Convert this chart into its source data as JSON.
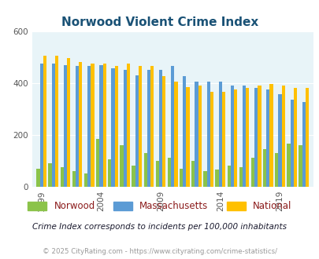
{
  "title": "Norwood Violent Crime Index",
  "title_color": "#1a5276",
  "subtitle": "Crime Index corresponds to incidents per 100,000 inhabitants",
  "footer": "© 2025 CityRating.com - https://www.cityrating.com/crime-statistics/",
  "years": [
    1999,
    2000,
    2001,
    2002,
    2003,
    2004,
    2005,
    2006,
    2007,
    2008,
    2009,
    2010,
    2011,
    2012,
    2013,
    2014,
    2015,
    2016,
    2017,
    2018,
    2019,
    2020,
    2021
  ],
  "norwood": [
    70,
    90,
    75,
    60,
    50,
    185,
    105,
    160,
    80,
    130,
    100,
    110,
    70,
    100,
    60,
    65,
    80,
    75,
    110,
    145,
    130,
    165,
    160
  ],
  "massachusetts": [
    475,
    475,
    470,
    465,
    465,
    470,
    455,
    450,
    430,
    450,
    450,
    465,
    425,
    405,
    405,
    405,
    390,
    390,
    380,
    375,
    355,
    335,
    325
  ],
  "national": [
    505,
    505,
    495,
    480,
    475,
    475,
    465,
    475,
    465,
    465,
    425,
    405,
    385,
    390,
    365,
    365,
    375,
    380,
    390,
    395,
    390,
    380,
    380
  ],
  "bar_colors": {
    "norwood": "#8bc34a",
    "massachusetts": "#5b9bd5",
    "national": "#ffc000"
  },
  "ylim": [
    0,
    600
  ],
  "yticks": [
    0,
    200,
    400,
    600
  ],
  "plot_bg": "#e8f4f8",
  "xticks": [
    1999,
    2004,
    2009,
    2014,
    2019
  ]
}
